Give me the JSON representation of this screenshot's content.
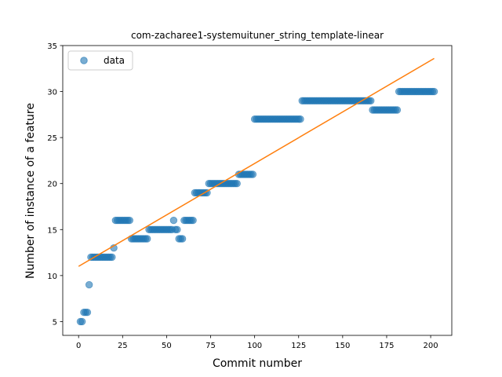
{
  "chart_data": {
    "type": "scatter",
    "title": "com-zacharee1-systemuituner_string_template-linear",
    "xlabel": "Commit number",
    "ylabel": "Number of instance of a feature",
    "xlim": [
      -9,
      212
    ],
    "ylim": [
      3.5,
      35
    ],
    "xticks": [
      0,
      25,
      50,
      75,
      100,
      125,
      150,
      175,
      200
    ],
    "yticks": [
      5,
      10,
      15,
      20,
      25,
      30,
      35
    ],
    "grid": false,
    "legend": {
      "position": "top-left",
      "entries": [
        "data"
      ]
    },
    "colors": {
      "points": "#1f77b4",
      "fit": "#ff7f0e"
    },
    "series": [
      {
        "name": "data",
        "kind": "scatter",
        "points": [
          [
            1,
            5
          ],
          [
            2,
            5
          ],
          [
            3,
            6
          ],
          [
            4,
            6
          ],
          [
            5,
            6
          ],
          [
            6,
            9
          ],
          [
            7,
            12
          ],
          [
            8,
            12
          ],
          [
            9,
            12
          ],
          [
            10,
            12
          ],
          [
            11,
            12
          ],
          [
            12,
            12
          ],
          [
            13,
            12
          ],
          [
            14,
            12
          ],
          [
            15,
            12
          ],
          [
            16,
            12
          ],
          [
            17,
            12
          ],
          [
            18,
            12
          ],
          [
            19,
            12
          ],
          [
            20,
            13
          ],
          [
            21,
            16
          ],
          [
            22,
            16
          ],
          [
            23,
            16
          ],
          [
            24,
            16
          ],
          [
            25,
            16
          ],
          [
            26,
            16
          ],
          [
            27,
            16
          ],
          [
            28,
            16
          ],
          [
            29,
            16
          ],
          [
            30,
            14
          ],
          [
            31,
            14
          ],
          [
            32,
            14
          ],
          [
            33,
            14
          ],
          [
            34,
            14
          ],
          [
            35,
            14
          ],
          [
            36,
            14
          ],
          [
            37,
            14
          ],
          [
            38,
            14
          ],
          [
            39,
            14
          ],
          [
            40,
            15
          ],
          [
            41,
            15
          ],
          [
            42,
            15
          ],
          [
            43,
            15
          ],
          [
            44,
            15
          ],
          [
            45,
            15
          ],
          [
            46,
            15
          ],
          [
            47,
            15
          ],
          [
            48,
            15
          ],
          [
            49,
            15
          ],
          [
            50,
            15
          ],
          [
            51,
            15
          ],
          [
            52,
            15
          ],
          [
            53,
            15
          ],
          [
            54,
            16
          ],
          [
            55,
            15
          ],
          [
            56,
            15
          ],
          [
            57,
            14
          ],
          [
            58,
            14
          ],
          [
            59,
            14
          ],
          [
            60,
            16
          ],
          [
            61,
            16
          ],
          [
            62,
            16
          ],
          [
            63,
            16
          ],
          [
            64,
            16
          ],
          [
            65,
            16
          ],
          [
            66,
            19
          ],
          [
            67,
            19
          ],
          [
            68,
            19
          ],
          [
            69,
            19
          ],
          [
            70,
            19
          ],
          [
            71,
            19
          ],
          [
            72,
            19
          ],
          [
            73,
            19
          ],
          [
            74,
            20
          ],
          [
            75,
            20
          ],
          [
            76,
            20
          ],
          [
            77,
            20
          ],
          [
            78,
            20
          ],
          [
            79,
            20
          ],
          [
            80,
            20
          ],
          [
            81,
            20
          ],
          [
            82,
            20
          ],
          [
            83,
            20
          ],
          [
            84,
            20
          ],
          [
            85,
            20
          ],
          [
            86,
            20
          ],
          [
            87,
            20
          ],
          [
            88,
            20
          ],
          [
            89,
            20
          ],
          [
            90,
            20
          ],
          [
            91,
            21
          ],
          [
            92,
            21
          ],
          [
            93,
            21
          ],
          [
            94,
            21
          ],
          [
            95,
            21
          ],
          [
            96,
            21
          ],
          [
            97,
            21
          ],
          [
            98,
            21
          ],
          [
            99,
            21
          ],
          [
            100,
            27
          ],
          [
            101,
            27
          ],
          [
            102,
            27
          ],
          [
            103,
            27
          ],
          [
            104,
            27
          ],
          [
            105,
            27
          ],
          [
            106,
            27
          ],
          [
            107,
            27
          ],
          [
            108,
            27
          ],
          [
            109,
            27
          ],
          [
            110,
            27
          ],
          [
            111,
            27
          ],
          [
            112,
            27
          ],
          [
            113,
            27
          ],
          [
            114,
            27
          ],
          [
            115,
            27
          ],
          [
            116,
            27
          ],
          [
            117,
            27
          ],
          [
            118,
            27
          ],
          [
            119,
            27
          ],
          [
            120,
            27
          ],
          [
            121,
            27
          ],
          [
            122,
            27
          ],
          [
            123,
            27
          ],
          [
            124,
            27
          ],
          [
            125,
            27
          ],
          [
            126,
            27
          ],
          [
            127,
            29
          ],
          [
            128,
            29
          ],
          [
            129,
            29
          ],
          [
            130,
            29
          ],
          [
            131,
            29
          ],
          [
            132,
            29
          ],
          [
            133,
            29
          ],
          [
            134,
            29
          ],
          [
            135,
            29
          ],
          [
            136,
            29
          ],
          [
            137,
            29
          ],
          [
            138,
            29
          ],
          [
            139,
            29
          ],
          [
            140,
            29
          ],
          [
            141,
            29
          ],
          [
            142,
            29
          ],
          [
            143,
            29
          ],
          [
            144,
            29
          ],
          [
            145,
            29
          ],
          [
            146,
            29
          ],
          [
            147,
            29
          ],
          [
            148,
            29
          ],
          [
            149,
            29
          ],
          [
            150,
            29
          ],
          [
            151,
            29
          ],
          [
            152,
            29
          ],
          [
            153,
            29
          ],
          [
            154,
            29
          ],
          [
            155,
            29
          ],
          [
            156,
            29
          ],
          [
            157,
            29
          ],
          [
            158,
            29
          ],
          [
            159,
            29
          ],
          [
            160,
            29
          ],
          [
            161,
            29
          ],
          [
            162,
            29
          ],
          [
            163,
            29
          ],
          [
            164,
            29
          ],
          [
            165,
            29
          ],
          [
            166,
            29
          ],
          [
            167,
            28
          ],
          [
            168,
            28
          ],
          [
            169,
            28
          ],
          [
            170,
            28
          ],
          [
            171,
            28
          ],
          [
            172,
            28
          ],
          [
            173,
            28
          ],
          [
            174,
            28
          ],
          [
            175,
            28
          ],
          [
            176,
            28
          ],
          [
            177,
            28
          ],
          [
            178,
            28
          ],
          [
            179,
            28
          ],
          [
            180,
            28
          ],
          [
            181,
            28
          ],
          [
            182,
            30
          ],
          [
            183,
            30
          ],
          [
            184,
            30
          ],
          [
            185,
            30
          ],
          [
            186,
            30
          ],
          [
            187,
            30
          ],
          [
            188,
            30
          ],
          [
            189,
            30
          ],
          [
            190,
            30
          ],
          [
            191,
            30
          ],
          [
            192,
            30
          ],
          [
            193,
            30
          ],
          [
            194,
            30
          ],
          [
            195,
            30
          ],
          [
            196,
            30
          ],
          [
            197,
            30
          ],
          [
            198,
            30
          ],
          [
            199,
            30
          ],
          [
            200,
            30
          ],
          [
            201,
            30
          ],
          [
            202,
            30
          ]
        ]
      },
      {
        "kind": "line",
        "points": [
          [
            0,
            11.0
          ],
          [
            202,
            33.6
          ]
        ]
      }
    ]
  }
}
